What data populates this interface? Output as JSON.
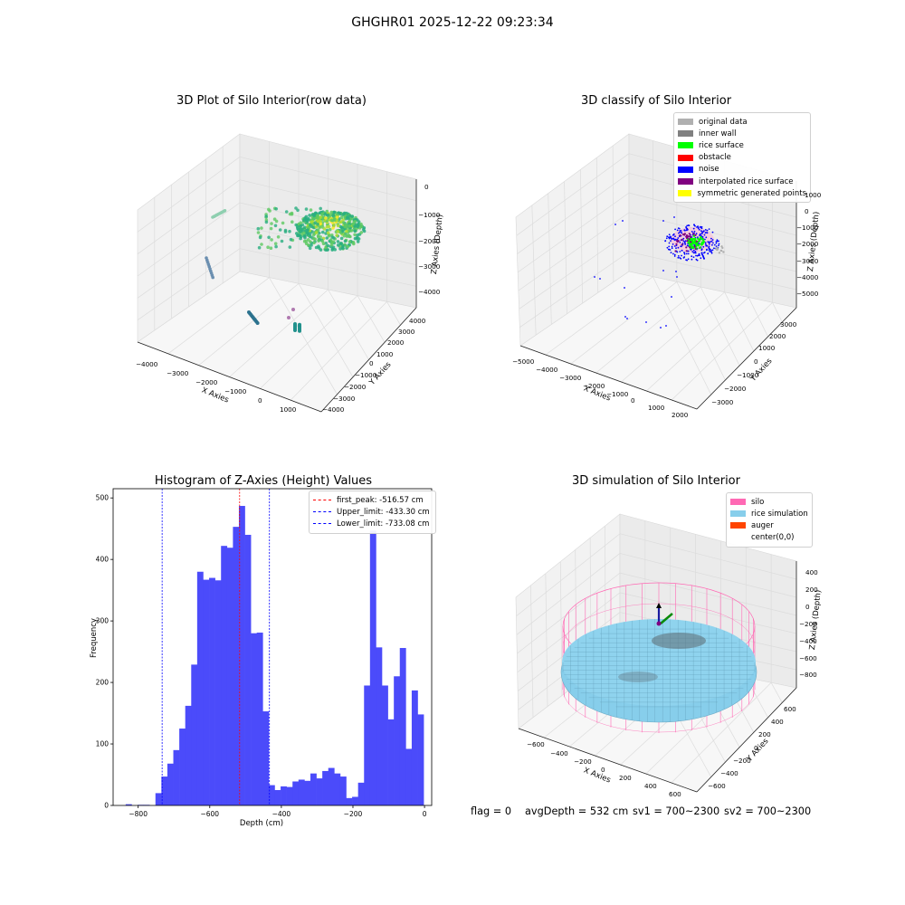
{
  "suptitle": "GHGHR01 2025-12-22 09:23:34",
  "panels": {
    "raw": {
      "title": "3D Plot of Silo Interior(row data)",
      "xlabel": "X Axies",
      "ylabel": "Y Axies",
      "zlabel": "Z Axies (Depth)",
      "xticks": [
        "−4000",
        "−3000",
        "−2000",
        "−1000",
        "0",
        "1000"
      ],
      "yticks": [
        "−4000",
        "−3000",
        "−2000",
        "−1000",
        "0",
        "1000",
        "2000",
        "3000",
        "4000"
      ],
      "zticks": [
        "0",
        "−1000",
        "−2000",
        "−3000",
        "−4000"
      ]
    },
    "classify": {
      "title": "3D classify of Silo Interior",
      "xlabel": "X Axies",
      "ylabel": "Y Axies",
      "zlabel": "Z Axies (Depth)",
      "xticks": [
        "−5000",
        "−4000",
        "−3000",
        "−2000",
        "−1000",
        "0",
        "1000",
        "2000"
      ],
      "yticks": [
        "−3000",
        "−2000",
        "−1000",
        "0",
        "1000",
        "2000",
        "3000"
      ],
      "zticks": [
        "1000",
        "0",
        "−1000",
        "−2000",
        "−3000",
        "−4000",
        "−5000"
      ],
      "legend": [
        {
          "label": "original data",
          "color": "#b0b0b0"
        },
        {
          "label": "inner wall",
          "color": "#808080"
        },
        {
          "label": "rice surface",
          "color": "#00ff00"
        },
        {
          "label": "obstacle",
          "color": "#ff0000"
        },
        {
          "label": "noise",
          "color": "#0000ff"
        },
        {
          "label": "interpolated rice surface",
          "color": "#800080"
        },
        {
          "label": "symmetric generated points",
          "color": "#ffff00"
        }
      ]
    },
    "simulation": {
      "title": "3D simulation of Silo Interior",
      "xlabel": "X Axies",
      "ylabel": "Y Axies",
      "zlabel": "Z Axies (Depth)",
      "xticks": [
        "−600",
        "−400",
        "−200",
        "0",
        "200",
        "400",
        "600"
      ],
      "yticks": [
        "−600",
        "−400",
        "−200",
        "0",
        "200",
        "400",
        "600"
      ],
      "zticks": [
        "400",
        "200",
        "0",
        "−200",
        "−400",
        "−600",
        "−800"
      ],
      "legend": [
        {
          "label": "silo",
          "color": "#ff69b4"
        },
        {
          "label": "rice simulation",
          "color": "#87ceeb"
        },
        {
          "label": "auger",
          "color": "#ff4500"
        },
        {
          "label": "center(0,0)",
          "color": ""
        }
      ]
    }
  },
  "chart_data": [
    {
      "type": "scatter",
      "title": "3D Plot of Silo Interior(row data)",
      "xlabel": "X Axies",
      "ylabel": "Y Axies",
      "zlabel": "Z Axies (Depth)",
      "xlim": [
        -4500,
        1500
      ],
      "ylim": [
        -4000,
        4000
      ],
      "zlim": [
        -4500,
        500
      ],
      "grid": true
    },
    {
      "type": "scatter",
      "title": "3D classify of Silo Interior",
      "xlabel": "X Axies",
      "ylabel": "Y Axies",
      "zlabel": "Z Axies (Depth)",
      "xlim": [
        -5000,
        2500
      ],
      "ylim": [
        -3500,
        3500
      ],
      "zlim": [
        -5500,
        1500
      ],
      "grid": true,
      "legend_position": "top-right"
    },
    {
      "type": "bar",
      "title": "Histogram of Z-Axies (Height) Values",
      "xlabel": "Depth (cm)",
      "ylabel": "Frequency",
      "xlim": [
        -870,
        20
      ],
      "ylim": [
        0,
        515
      ],
      "xticks": [
        "−800",
        "−600",
        "−400",
        "−200",
        "0"
      ],
      "yticks": [
        "0",
        "100",
        "200",
        "300",
        "400",
        "500"
      ],
      "bin_start": -835,
      "bin_width": 16.65,
      "values": [
        2,
        0,
        1,
        1,
        0,
        20,
        47,
        68,
        90,
        125,
        162,
        229,
        380,
        367,
        370,
        366,
        422,
        419,
        453,
        487,
        440,
        280,
        281,
        153,
        33,
        25,
        31,
        30,
        39,
        42,
        40,
        52,
        44,
        56,
        61,
        52,
        47,
        12,
        14,
        37,
        195,
        447,
        257,
        195,
        140,
        210,
        256,
        92,
        187,
        148
      ],
      "vlines": [
        {
          "x": -516.57,
          "color": "#ff0000",
          "label": "first_peak: -516.57 cm"
        },
        {
          "x": -433.3,
          "color": "#0000ff",
          "label": "Upper_limit: -433.30 cm"
        },
        {
          "x": -733.08,
          "color": "#0000ff",
          "label": "Lower_limit: -733.08 cm"
        }
      ],
      "bar_color": "#4b4bfa",
      "legend_position": "top-right"
    },
    {
      "type": "surface",
      "title": "3D simulation of Silo Interior",
      "xlabel": "X Axies",
      "ylabel": "Y Axies",
      "zlabel": "Z Axies (Depth)",
      "xlim": [
        -700,
        700
      ],
      "ylim": [
        -700,
        700
      ],
      "zlim": [
        -950,
        500
      ],
      "grid": true,
      "legend_position": "top-right"
    }
  ],
  "stats": {
    "flag": "flag = 0",
    "avg_depth": "avgDepth = 532 cm",
    "sv1": "sv1 = 700~2300",
    "sv2": "sv2 = 700~2300"
  }
}
